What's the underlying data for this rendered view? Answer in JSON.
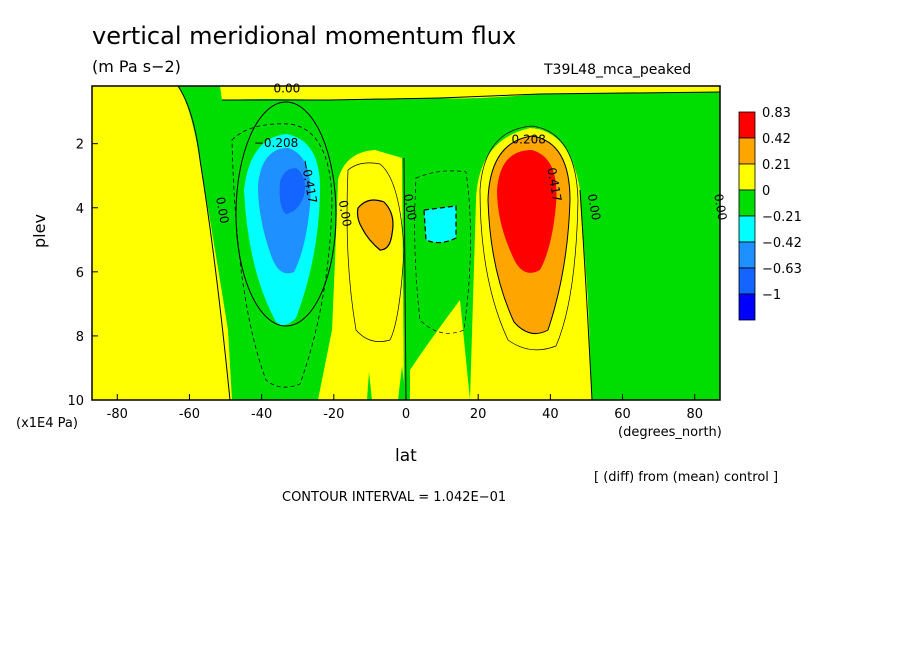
{
  "header": {
    "title": "vertical meridional momentum flux",
    "subtitle": "(m Pa s−2)",
    "dataset": "T39L48_mca_peaked"
  },
  "footer": {
    "diff_note": "[ (diff) from (mean) control ]",
    "contour_interval": "CONTOUR INTERVAL = 1.042E−01"
  },
  "chart_data": {
    "type": "heatmap",
    "xlabel": "lat",
    "x_units": "(degrees_north)",
    "ylabel": "plev",
    "y_units": "(x1E4 Pa)",
    "xlim": [
      -87,
      87
    ],
    "ylim": [
      10,
      0.2
    ],
    "x_ticks": [
      -80,
      -60,
      -40,
      -20,
      0,
      20,
      40,
      60,
      80
    ],
    "y_ticks": [
      2,
      4,
      6,
      8,
      10
    ],
    "legend": {
      "placement": "right",
      "labels": [
        "0.83",
        "0.42",
        "0.21",
        "0",
        "−0.21",
        "−0.42",
        "−0.63",
        "−1"
      ],
      "colors": [
        "#ff0000",
        "#ffa500",
        "#ffff00",
        "#00dd00",
        "#00ffff",
        "#1e90ff",
        "#1464ff",
        "#0000ff"
      ]
    },
    "contour_labels": [
      {
        "text": "0.00",
        "lat": -33,
        "plev": 0.4
      },
      {
        "text": "−0.208",
        "lat": -36,
        "plev": 2.1
      },
      {
        "text": "−0.417",
        "lat": -28,
        "plev": 3.2
      },
      {
        "text": "0.00",
        "lat": -52,
        "plev": 4.1
      },
      {
        "text": "0.00",
        "lat": -18,
        "plev": 4.2
      },
      {
        "text": "0.00",
        "lat": 0,
        "plev": 4.0
      },
      {
        "text": "0.208",
        "lat": 34,
        "plev": 2.0
      },
      {
        "text": "0.417",
        "lat": 40,
        "plev": 3.3
      },
      {
        "text": "0.00",
        "lat": 51,
        "plev": 4.0
      },
      {
        "text": "0.00",
        "lat": 86,
        "plev": 4.0
      }
    ],
    "regions": [
      {
        "value": "max",
        "lat": 32,
        "plev": 3.5
      },
      {
        "value": "min",
        "lat": -32,
        "plev": 3.4
      },
      {
        "value": "pos",
        "lat": -8,
        "plev": 4.4
      },
      {
        "value": "neg",
        "lat": 10,
        "plev": 4.3
      }
    ]
  }
}
